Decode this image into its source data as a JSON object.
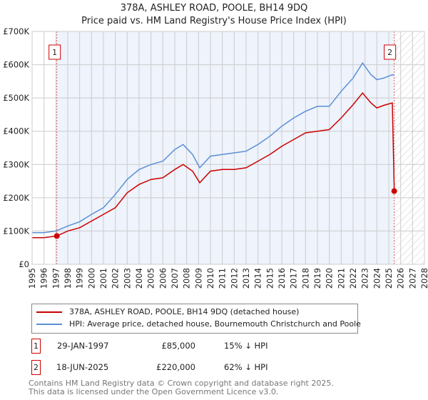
{
  "chart_data": {
    "type": "line",
    "title": "378A, ASHLEY ROAD, POOLE, BH14 9DQ",
    "subtitle": "Price paid vs. HM Land Registry's House Price Index (HPI)",
    "xlim": [
      1995,
      2028
    ],
    "ylim": [
      0,
      700000
    ],
    "x_ticks": [
      "1995",
      "1996",
      "1997",
      "1998",
      "1999",
      "2000",
      "2001",
      "2002",
      "2003",
      "2004",
      "2005",
      "2006",
      "2007",
      "2008",
      "2009",
      "2010",
      "2011",
      "2012",
      "2013",
      "2014",
      "2015",
      "2016",
      "2017",
      "2018",
      "2019",
      "2020",
      "2021",
      "2022",
      "2023",
      "2024",
      "2025",
      "2026",
      "2027",
      "2028"
    ],
    "y_ticks": [
      {
        "v": 0,
        "label": "£0"
      },
      {
        "v": 100000,
        "label": "£100K"
      },
      {
        "v": 200000,
        "label": "£200K"
      },
      {
        "v": 300000,
        "label": "£300K"
      },
      {
        "v": 400000,
        "label": "£400K"
      },
      {
        "v": 500000,
        "label": "£500K"
      },
      {
        "v": 600000,
        "label": "£600K"
      },
      {
        "v": 700000,
        "label": "£700K"
      }
    ],
    "grid": true,
    "series": [
      {
        "name": "378A, ASHLEY ROAD, POOLE, BH14 9DQ (detached house)",
        "color": "#cc0000",
        "x": [
          1995,
          1996,
          1997.08,
          1998,
          1999,
          2000,
          2001,
          2002,
          2003,
          2004,
          2005,
          2006,
          2007,
          2007.7,
          2008.5,
          2009.1,
          2010,
          2011,
          2012,
          2013,
          2014,
          2015,
          2016,
          2017,
          2018,
          2019,
          2020,
          2021,
          2022,
          2022.8,
          2023.5,
          2024,
          2024.6,
          2025.3,
          2025.46
        ],
        "y": [
          80000,
          80000,
          85000,
          100000,
          110000,
          130000,
          150000,
          170000,
          215000,
          240000,
          255000,
          260000,
          285000,
          300000,
          280000,
          245000,
          280000,
          285000,
          285000,
          290000,
          310000,
          330000,
          355000,
          375000,
          395000,
          400000,
          405000,
          440000,
          480000,
          515000,
          485000,
          470000,
          478000,
          485000,
          220000
        ]
      },
      {
        "name": "HPI: Average price, detached house, Bournemouth Christchurch and Poole",
        "color": "#5b8fd4",
        "x": [
          1995,
          1996,
          1997,
          1998,
          1999,
          2000,
          2001,
          2002,
          2003,
          2004,
          2005,
          2006,
          2007,
          2007.7,
          2008.5,
          2009.1,
          2010,
          2011,
          2012,
          2013,
          2014,
          2015,
          2016,
          2017,
          2018,
          2019,
          2020,
          2021,
          2022,
          2022.8,
          2023.5,
          2024,
          2024.6,
          2025.3,
          2025.46
        ],
        "y": [
          95000,
          95000,
          100000,
          115000,
          128000,
          150000,
          170000,
          210000,
          255000,
          285000,
          300000,
          310000,
          345000,
          360000,
          330000,
          290000,
          325000,
          330000,
          335000,
          340000,
          360000,
          385000,
          415000,
          440000,
          460000,
          475000,
          475000,
          520000,
          560000,
          605000,
          570000,
          555000,
          560000,
          570000,
          568000
        ]
      }
    ],
    "annotations": [
      {
        "label": "1",
        "x": 1997.08,
        "y": 85000
      },
      {
        "label": "2",
        "x": 2025.46,
        "y": 220000
      }
    ],
    "legend_position": "bottom"
  },
  "transactions": [
    {
      "num": "1",
      "date": "29-JAN-1997",
      "price": "£85,000",
      "hpi": "15% ↓ HPI"
    },
    {
      "num": "2",
      "date": "18-JUN-2025",
      "price": "£220,000",
      "hpi": "62% ↓ HPI"
    }
  ],
  "footer": [
    "Contains HM Land Registry data © Crown copyright and database right 2025.",
    "This data is licensed under the Open Government Licence v3.0."
  ]
}
